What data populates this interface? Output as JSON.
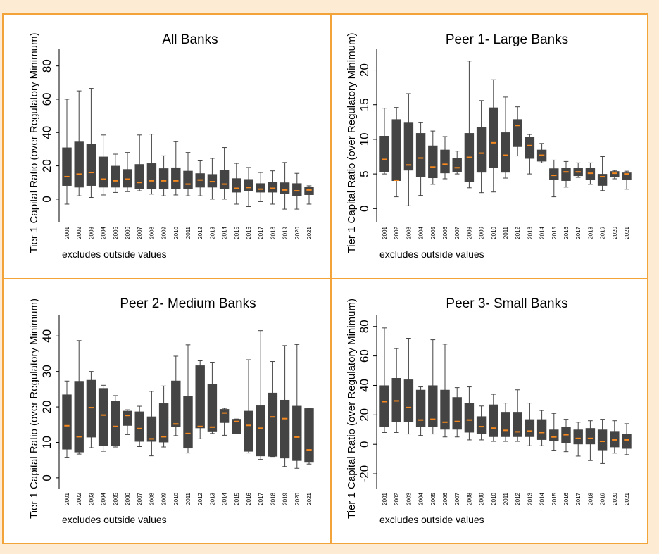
{
  "colors": {
    "page_background": "#fdebd3",
    "panel_background": "#ffffff",
    "frame": "#f2a33a",
    "box": "#444444",
    "median": "#f5891f"
  },
  "chart_data": [
    {
      "type": "box",
      "title": "All Banks",
      "ylabel": "Tier 1 Capital Ratio (over Regulatory Minimum)",
      "note": "excludes outside values",
      "ylim": [
        -14,
        90
      ],
      "yticks": [
        0,
        20,
        40,
        60,
        80
      ],
      "categories": [
        "2001",
        "2002",
        "2003",
        "2004",
        "2005",
        "2006",
        "2007",
        "2008",
        "2009",
        "2010",
        "2011",
        "2012",
        "2013",
        "2014",
        "2015",
        "2016",
        "2017",
        "2018",
        "2019",
        "2020",
        "2021"
      ],
      "boxes": [
        {
          "low": -3,
          "q1": 8,
          "median": 13.5,
          "q3": 31,
          "high": 60
        },
        {
          "low": 2,
          "q1": 7,
          "median": 15,
          "q3": 34.5,
          "high": 65
        },
        {
          "low": 1,
          "q1": 8,
          "median": 16,
          "q3": 33,
          "high": 66.5
        },
        {
          "low": 2.5,
          "q1": 7,
          "median": 12,
          "q3": 25.5,
          "high": 38.5
        },
        {
          "low": 4,
          "q1": 7,
          "median": 11,
          "q3": 20,
          "high": 27
        },
        {
          "low": 4.5,
          "q1": 7,
          "median": 12,
          "q3": 18,
          "high": 28
        },
        {
          "low": 5,
          "q1": 6,
          "median": 10,
          "q3": 21,
          "high": 38.5
        },
        {
          "low": 3,
          "q1": 6,
          "median": 11,
          "q3": 21.5,
          "high": 39
        },
        {
          "low": 2,
          "q1": 6,
          "median": 11,
          "q3": 18.5,
          "high": 26
        },
        {
          "low": 2.5,
          "q1": 6,
          "median": 11,
          "q3": 19,
          "high": 34.5
        },
        {
          "low": 2,
          "q1": 6,
          "median": 9,
          "q3": 17,
          "high": 28
        },
        {
          "low": 2,
          "q1": 7,
          "median": 11.5,
          "q3": 15.5,
          "high": 23
        },
        {
          "low": 0,
          "q1": 7,
          "median": 10.5,
          "q3": 15,
          "high": 24.5
        },
        {
          "low": 0,
          "q1": 6,
          "median": 9,
          "q3": 17.5,
          "high": 31
        },
        {
          "low": -3,
          "q1": 4,
          "median": 6.5,
          "q3": 12.5,
          "high": 21.5
        },
        {
          "low": -4.5,
          "q1": 5,
          "median": 7,
          "q3": 12,
          "high": 19
        },
        {
          "low": -1.5,
          "q1": 4,
          "median": 6,
          "q3": 9.5,
          "high": 16
        },
        {
          "low": -3,
          "q1": 4,
          "median": 6.5,
          "q3": 10.5,
          "high": 17
        },
        {
          "low": -6,
          "q1": 3,
          "median": 5.5,
          "q3": 10,
          "high": 22
        },
        {
          "low": -6,
          "q1": 2,
          "median": 5,
          "q3": 9.5,
          "high": 15.5
        },
        {
          "low": -3,
          "q1": 2.5,
          "median": 5.5,
          "q3": 7.5,
          "high": 8
        }
      ]
    },
    {
      "type": "box",
      "title": "Peer 1- Large Banks",
      "ylabel": "Tier 1 Capital Ratio (over Regulatory Minimum)",
      "note": "excludes outside values",
      "ylim": [
        -2,
        23
      ],
      "yticks": [
        0,
        5,
        10,
        15,
        20
      ],
      "categories": [
        "2001",
        "2002",
        "2003",
        "2004",
        "2005",
        "2006",
        "2007",
        "2008",
        "2009",
        "2010",
        "2011",
        "2012",
        "2013",
        "2014",
        "2015",
        "2016",
        "2017",
        "2018",
        "2019",
        "2020",
        "2021"
      ],
      "boxes": [
        {
          "low": 5,
          "q1": 5.3,
          "median": 7.1,
          "q3": 10.5,
          "high": 14.5
        },
        {
          "low": 1.7,
          "q1": 4,
          "median": 4.1,
          "q3": 12.9,
          "high": 14.6
        },
        {
          "low": 0.4,
          "q1": 5.5,
          "median": 6.3,
          "q3": 12.4,
          "high": 16.6
        },
        {
          "low": 1.9,
          "q1": 4.6,
          "median": 7.3,
          "q3": 10.9,
          "high": 12.4
        },
        {
          "low": 3.5,
          "q1": 4.4,
          "median": 6,
          "q3": 9.1,
          "high": 11.2
        },
        {
          "low": 4.3,
          "q1": 5.1,
          "median": 6.4,
          "q3": 8.5,
          "high": 10.4
        },
        {
          "low": 5,
          "q1": 5.3,
          "median": 5.9,
          "q3": 7.3,
          "high": 8.3
        },
        {
          "low": 3,
          "q1": 3.8,
          "median": 7.4,
          "q3": 10.9,
          "high": 21.3
        },
        {
          "low": 2.3,
          "q1": 5.2,
          "median": 8,
          "q3": 11.8,
          "high": 15.6
        },
        {
          "low": 2.4,
          "q1": 5.9,
          "median": 9.5,
          "q3": 14.6,
          "high": 18.6
        },
        {
          "low": 4.4,
          "q1": 5.2,
          "median": 7.7,
          "q3": 11,
          "high": 16.1
        },
        {
          "low": 7.6,
          "q1": 8.9,
          "median": 12,
          "q3": 12.9,
          "high": 14.7
        },
        {
          "low": 5,
          "q1": 7.2,
          "median": 9.1,
          "q3": 10.3,
          "high": 10.7
        },
        {
          "low": 6.6,
          "q1": 6.8,
          "median": 7.7,
          "q3": 8.5,
          "high": 9.4
        },
        {
          "low": 1.7,
          "q1": 4.1,
          "median": 4.8,
          "q3": 5.8,
          "high": 7
        },
        {
          "low": 3.1,
          "q1": 4,
          "median": 5.3,
          "q3": 5.9,
          "high": 6.8
        },
        {
          "low": 4.5,
          "q1": 4.7,
          "median": 5.3,
          "q3": 5.9,
          "high": 6.6
        },
        {
          "low": 3.5,
          "q1": 4.1,
          "median": 5.1,
          "q3": 5.9,
          "high": 6.6
        },
        {
          "low": 2.6,
          "q1": 3.3,
          "median": 4.6,
          "q3": 5,
          "high": 7.5
        },
        {
          "low": 4.3,
          "q1": 4.5,
          "median": 5.1,
          "q3": 5.4,
          "high": 5.5
        },
        {
          "low": 2.8,
          "q1": 4.1,
          "median": 5,
          "q3": 5.2,
          "high": 5.4
        }
      ]
    },
    {
      "type": "box",
      "title": "Peer 2- Medium Banks",
      "ylabel": "Tier 1 Capital Ratio (over Regulatory Minimum)",
      "note": "excludes outside values",
      "ylim": [
        -3,
        46
      ],
      "yticks": [
        0,
        10,
        20,
        30,
        40
      ],
      "categories": [
        "2001",
        "2002",
        "2003",
        "2004",
        "2005",
        "2006",
        "2007",
        "2008",
        "2009",
        "2010",
        "2011",
        "2012",
        "2013",
        "2014",
        "2015",
        "2016",
        "2017",
        "2018",
        "2019",
        "2020",
        "2021"
      ],
      "boxes": [
        {
          "low": 5.8,
          "q1": 8,
          "median": 14.7,
          "q3": 23.5,
          "high": 27.3
        },
        {
          "low": 6.7,
          "q1": 7.2,
          "median": 11.6,
          "q3": 27.3,
          "high": 38.7
        },
        {
          "low": 8.5,
          "q1": 11.4,
          "median": 19.8,
          "q3": 27.6,
          "high": 30
        },
        {
          "low": 7.5,
          "q1": 9,
          "median": 17.7,
          "q3": 25.3,
          "high": 26.1
        },
        {
          "low": 8.7,
          "q1": 8.9,
          "median": 14.5,
          "q3": 21.7,
          "high": 23.2
        },
        {
          "low": 12.2,
          "q1": 14.7,
          "median": 17.6,
          "q3": 18.9,
          "high": 19.2
        },
        {
          "low": 8.8,
          "q1": 10.2,
          "median": 13.9,
          "q3": 18.7,
          "high": 20.2
        },
        {
          "low": 6.2,
          "q1": 10.2,
          "median": 11,
          "q3": 17.3,
          "high": 24.4
        },
        {
          "low": 8.7,
          "q1": 10,
          "median": 11.6,
          "q3": 21,
          "high": 25.9
        },
        {
          "low": 11.9,
          "q1": 14.3,
          "median": 15.2,
          "q3": 27.4,
          "high": 34.3
        },
        {
          "low": 7,
          "q1": 8.3,
          "median": 12.5,
          "q3": 23,
          "high": 37.5
        },
        {
          "low": 11,
          "q1": 14,
          "median": 14.5,
          "q3": 31.7,
          "high": 33
        },
        {
          "low": 12.5,
          "q1": 13.1,
          "median": 14.3,
          "q3": 26.5,
          "high": 32.6
        },
        {
          "low": 12,
          "q1": 15.5,
          "median": 18.3,
          "q3": 19.4,
          "high": 19.6
        },
        {
          "low": 12.4,
          "q1": 12.4,
          "median": 15.9,
          "q3": 16.6,
          "high": 16.6
        },
        {
          "low": 7,
          "q1": 7.4,
          "median": 14.8,
          "q3": 18.9,
          "high": 33.3
        },
        {
          "low": 5.2,
          "q1": 6.1,
          "median": 14,
          "q3": 20.4,
          "high": 41.5
        },
        {
          "low": 6,
          "q1": 6,
          "median": 17.2,
          "q3": 24,
          "high": 32.8
        },
        {
          "low": 3.2,
          "q1": 5.5,
          "median": 16.7,
          "q3": 22,
          "high": 37.3
        },
        {
          "low": 2.7,
          "q1": 4.8,
          "median": 11.5,
          "q3": 20.3,
          "high": 37.6
        },
        {
          "low": 3.9,
          "q1": 4.3,
          "median": 7.9,
          "q3": 19.6,
          "high": 19.6
        }
      ]
    },
    {
      "type": "box",
      "title": "Peer 3- Small Banks",
      "ylabel": "Tier 1 Capital Ratio (over Regulatory Minimum)",
      "note": "excludes outside values",
      "ylim": [
        -30,
        88
      ],
      "yticks": [
        -20,
        0,
        20,
        40,
        60,
        80
      ],
      "categories": [
        "2001",
        "2002",
        "2003",
        "2004",
        "2005",
        "2006",
        "2007",
        "2008",
        "2009",
        "2010",
        "2011",
        "2012",
        "2013",
        "2014",
        "2015",
        "2016",
        "2017",
        "2018",
        "2019",
        "2020",
        "2021"
      ],
      "boxes": [
        {
          "low": 8,
          "q1": 12,
          "median": 29,
          "q3": 40,
          "high": 79
        },
        {
          "low": 8,
          "q1": 15,
          "median": 29.5,
          "q3": 45,
          "high": 65
        },
        {
          "low": 7,
          "q1": 15,
          "median": 25,
          "q3": 44,
          "high": 72
        },
        {
          "low": 6,
          "q1": 12,
          "median": 16.5,
          "q3": 37,
          "high": 39
        },
        {
          "low": 7,
          "q1": 12,
          "median": 17,
          "q3": 40,
          "high": 71
        },
        {
          "low": 5,
          "q1": 10,
          "median": 15,
          "q3": 37,
          "high": 68
        },
        {
          "low": 5,
          "q1": 10,
          "median": 15.5,
          "q3": 32,
          "high": 38.5
        },
        {
          "low": 3,
          "q1": 8,
          "median": 16.5,
          "q3": 28,
          "high": 39
        },
        {
          "low": 3,
          "q1": 7,
          "median": 12,
          "q3": 19,
          "high": 26
        },
        {
          "low": 2,
          "q1": 5,
          "median": 11,
          "q3": 27,
          "high": 34
        },
        {
          "low": 2,
          "q1": 5,
          "median": 9.5,
          "q3": 22,
          "high": 28
        },
        {
          "low": 2,
          "q1": 5,
          "median": 8.5,
          "q3": 22,
          "high": 37
        },
        {
          "low": -1,
          "q1": 5,
          "median": 9,
          "q3": 17,
          "high": 28
        },
        {
          "low": -1,
          "q1": 3,
          "median": 8,
          "q3": 17,
          "high": 23
        },
        {
          "low": -4,
          "q1": 2,
          "median": 5,
          "q3": 10,
          "high": 21
        },
        {
          "low": -5,
          "q1": 1,
          "median": 6.5,
          "q3": 12,
          "high": 17
        },
        {
          "low": -8,
          "q1": 0,
          "median": 4,
          "q3": 10,
          "high": 15
        },
        {
          "low": -11,
          "q1": 0,
          "median": 4,
          "q3": 11,
          "high": 16
        },
        {
          "low": -13,
          "q1": -4,
          "median": 2,
          "q3": 10,
          "high": 17
        },
        {
          "low": -6,
          "q1": -2,
          "median": 3,
          "q3": 9,
          "high": 16
        },
        {
          "low": -7,
          "q1": -3,
          "median": 3,
          "q3": 7,
          "high": 14
        }
      ]
    }
  ]
}
